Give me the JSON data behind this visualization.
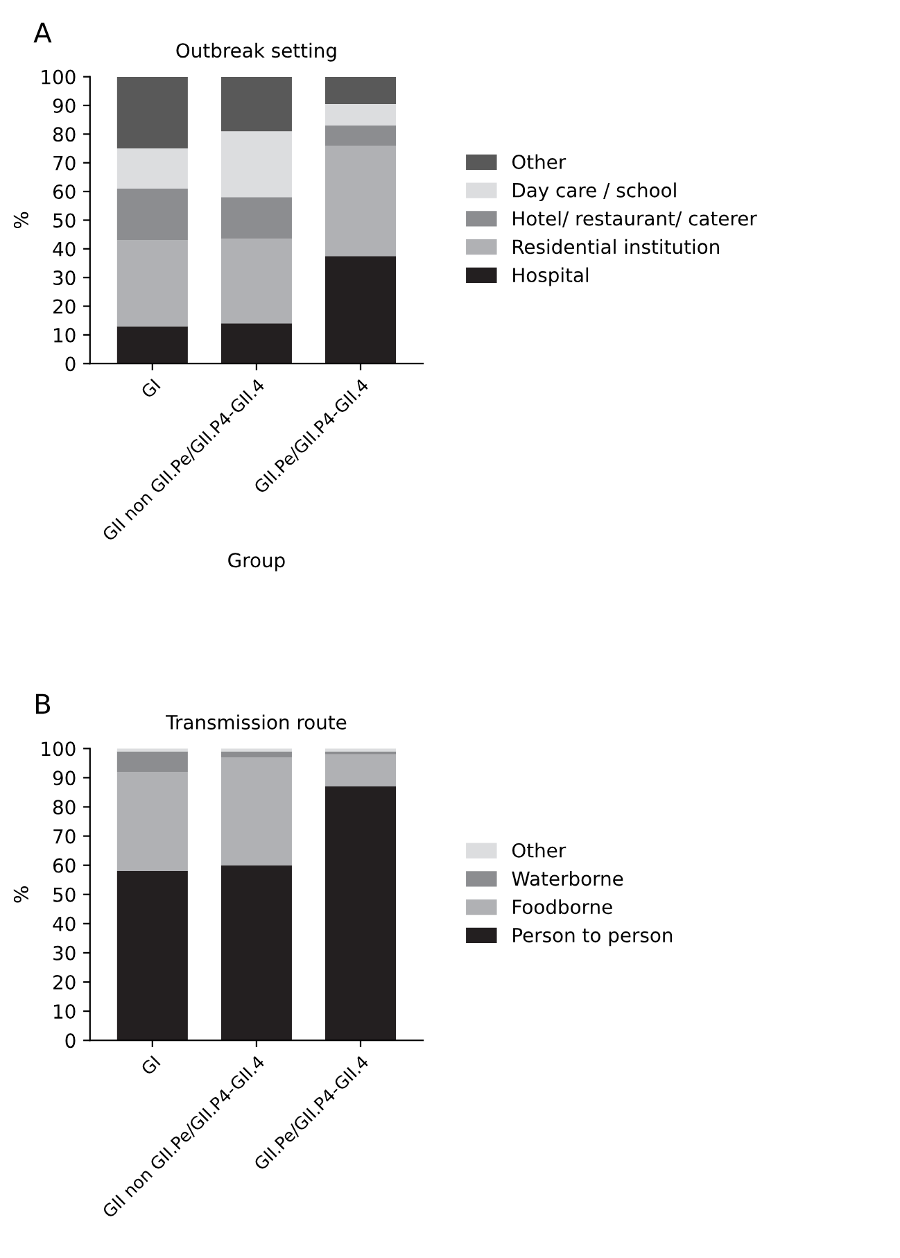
{
  "chart_data": [
    {
      "type": "bar",
      "title": "Outbreak setting",
      "xlabel": "Group",
      "ylabel": "%",
      "annotations": [
        "A"
      ],
      "stacked": true,
      "categories": [
        "GI",
        "GII non GII.Pe/GII.P4-GII.4",
        "GII.Pe/GII.P4-GII.4"
      ],
      "series": [
        {
          "name": "Hospital",
          "color": "#231f20",
          "values": [
            13,
            14,
            37.5
          ]
        },
        {
          "name": "Residential institution",
          "color": "#b0b1b4",
          "values": [
            30,
            29.5,
            38.5
          ]
        },
        {
          "name": "Hotel/ restaurant/ caterer",
          "color": "#8c8d90",
          "values": [
            18,
            14.5,
            7
          ]
        },
        {
          "name": "Day care / school",
          "color": "#dcdddf",
          "values": [
            14,
            23,
            7.5
          ]
        },
        {
          "name": "Other",
          "color": "#595959",
          "values": [
            25,
            19,
            9.5
          ]
        }
      ],
      "ylim": [
        0,
        100
      ],
      "yticks": [
        0,
        10,
        20,
        30,
        40,
        50,
        60,
        70,
        80,
        90,
        100
      ],
      "grid": false,
      "legend": "right"
    },
    {
      "type": "bar",
      "title": "Transmission route",
      "ylabel": "%",
      "annotations": [
        "B"
      ],
      "stacked": true,
      "categories": [
        "GI",
        "GII non GII.Pe/GII.P4-GII.4",
        "GII.Pe/GII.P4-GII.4"
      ],
      "series": [
        {
          "name": "Person to person",
          "color": "#231f20",
          "values": [
            58,
            60,
            87
          ]
        },
        {
          "name": "Foodborne",
          "color": "#b0b1b4",
          "values": [
            34,
            37,
            11
          ]
        },
        {
          "name": "Waterborne",
          "color": "#8c8d90",
          "values": [
            7,
            2,
            1
          ]
        },
        {
          "name": "Other",
          "color": "#dcdddf",
          "values": [
            1,
            1,
            1
          ]
        }
      ],
      "ylim": [
        0,
        100
      ],
      "yticks": [
        0,
        10,
        20,
        30,
        40,
        50,
        60,
        70,
        80,
        90,
        100
      ],
      "grid": false,
      "legend": "right"
    }
  ]
}
